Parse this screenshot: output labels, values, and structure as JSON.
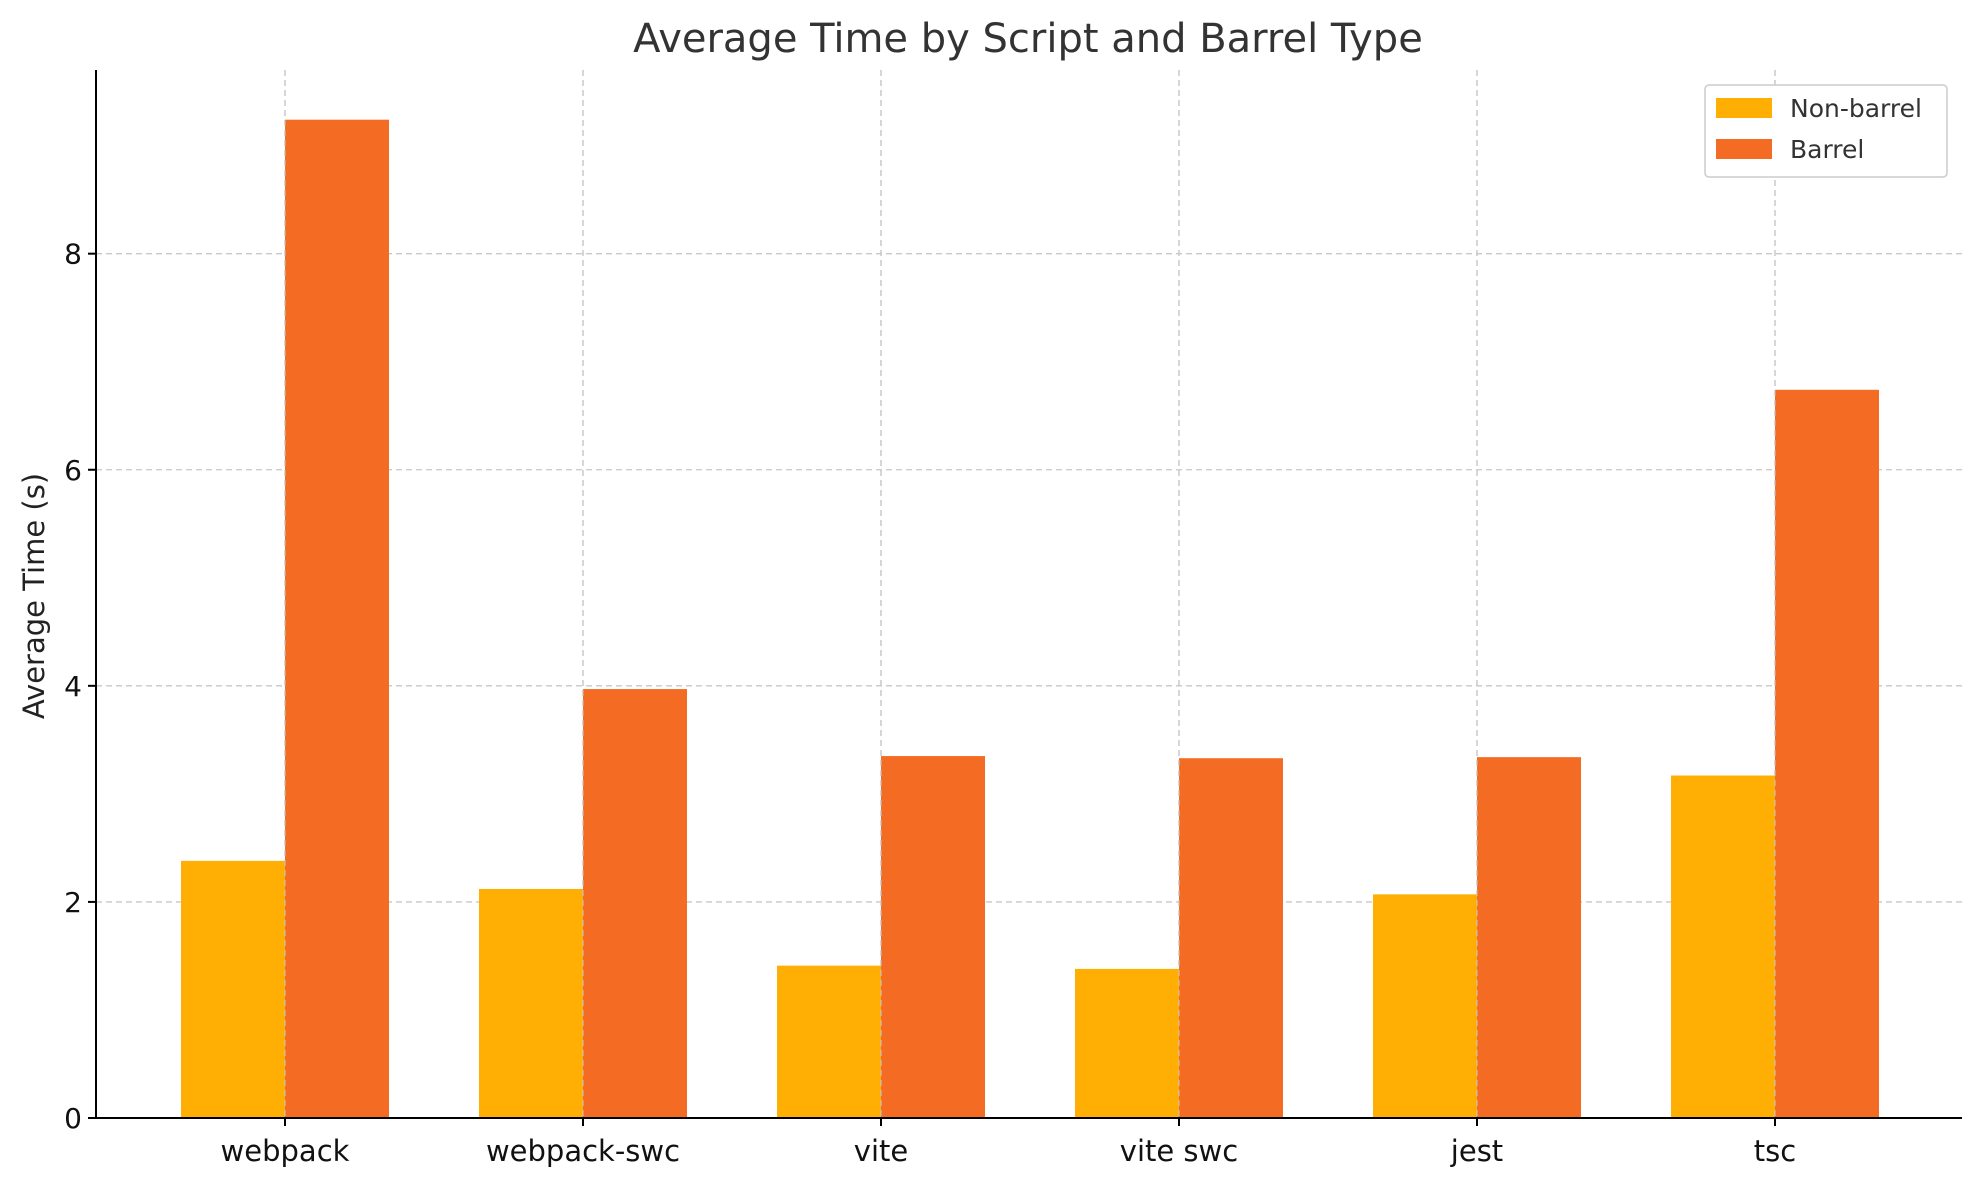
{
  "chart_data": {
    "type": "bar",
    "title": "Average Time by Script and Barrel Type",
    "xlabel": "",
    "ylabel": "Average Time (s)",
    "categories": [
      "webpack",
      "webpack-swc",
      "vite",
      "vite swc",
      "jest",
      "tsc"
    ],
    "series": [
      {
        "name": "Non-barrel",
        "color": "#FFAE03",
        "values": [
          2.38,
          2.12,
          1.41,
          1.38,
          2.07,
          3.17
        ]
      },
      {
        "name": "Barrel",
        "color": "#F46B23",
        "values": [
          9.24,
          3.97,
          3.35,
          3.33,
          3.34,
          6.74
        ]
      }
    ],
    "ylim": [
      0,
      9.7
    ],
    "yticks": [
      0,
      2,
      4,
      6,
      8
    ],
    "grid": true,
    "legend_position": "top-right"
  }
}
